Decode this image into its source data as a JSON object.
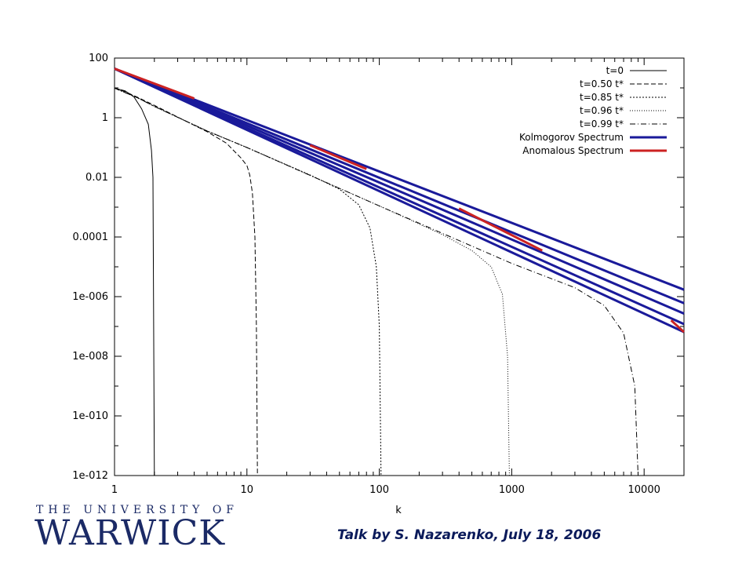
{
  "chart_data": {
    "type": "line",
    "xlabel": "k",
    "ylabel": "",
    "xscale": "log",
    "yscale": "log",
    "xlim": [
      1,
      20000
    ],
    "ylim": [
      1e-12,
      100
    ],
    "xticks": [
      {
        "value": 1,
        "label": "1"
      },
      {
        "value": 10,
        "label": "10"
      },
      {
        "value": 100,
        "label": "100"
      },
      {
        "value": 1000,
        "label": "1000"
      },
      {
        "value": 10000,
        "label": "10000"
      }
    ],
    "yticks": [
      {
        "value": 100,
        "label": "100"
      },
      {
        "value": 1,
        "label": "1"
      },
      {
        "value": 0.01,
        "label": "0.01"
      },
      {
        "value": 0.0001,
        "label": "0.0001"
      },
      {
        "value": 1e-06,
        "label": "1e-006"
      },
      {
        "value": 1e-08,
        "label": "1e-008"
      },
      {
        "value": 1e-10,
        "label": "1e-010"
      },
      {
        "value": 1e-12,
        "label": "1e-012"
      }
    ],
    "legend_position": "top-right",
    "series": [
      {
        "name": "t=0",
        "color": "#000000",
        "dash": "solid",
        "points": [
          [
            1,
            9.8
          ],
          [
            1.2,
            8
          ],
          [
            1.4,
            5
          ],
          [
            1.6,
            2
          ],
          [
            1.8,
            0.6
          ],
          [
            1.9,
            0.08
          ],
          [
            1.95,
            0.01
          ],
          [
            2.0,
            1e-12
          ]
        ]
      },
      {
        "name": "t=0.50 t*",
        "color": "#000000",
        "dash": "6,3",
        "points": [
          [
            1,
            9.8
          ],
          [
            1.2,
            7.5
          ],
          [
            1.5,
            4.8
          ],
          [
            2,
            2.6
          ],
          [
            3,
            1.05
          ],
          [
            5,
            0.34
          ],
          [
            7,
            0.14
          ],
          [
            9,
            0.045
          ],
          [
            10,
            0.025
          ],
          [
            10.5,
            0.012
          ],
          [
            11,
            0.003
          ],
          [
            11.5,
            0.0001
          ],
          [
            11.8,
            1e-07
          ],
          [
            12,
            1e-12
          ]
        ]
      },
      {
        "name": "t=0.85 t*",
        "color": "#000000",
        "dash": "2,2",
        "points": [
          [
            1,
            9.8
          ],
          [
            1.5,
            4.6
          ],
          [
            2,
            2.4
          ],
          [
            5,
            0.36
          ],
          [
            10,
            0.1
          ],
          [
            30,
            0.012
          ],
          [
            50,
            0.004
          ],
          [
            70,
            0.0012
          ],
          [
            85,
            0.0002
          ],
          [
            95,
            1e-05
          ],
          [
            100,
            1e-07
          ],
          [
            103,
            1e-12
          ]
        ]
      },
      {
        "name": "t=0.96 t*",
        "color": "#000000",
        "dash": "1,2",
        "points": [
          [
            1,
            9.8
          ],
          [
            1.5,
            4.6
          ],
          [
            2,
            2.4
          ],
          [
            5,
            0.36
          ],
          [
            10,
            0.1
          ],
          [
            100,
            0.0011
          ],
          [
            300,
            0.00012
          ],
          [
            500,
            3.5e-05
          ],
          [
            700,
            1e-05
          ],
          [
            850,
            1.2e-06
          ],
          [
            930,
            1e-08
          ],
          [
            960,
            1e-12
          ]
        ]
      },
      {
        "name": "t=0.99 t*",
        "color": "#000000",
        "dash": "7,3,1,3",
        "points": [
          [
            1,
            9.8
          ],
          [
            1.5,
            4.6
          ],
          [
            2,
            2.4
          ],
          [
            5,
            0.36
          ],
          [
            10,
            0.1
          ],
          [
            100,
            0.0011
          ],
          [
            1000,
            1.3e-05
          ],
          [
            3000,
            2e-06
          ],
          [
            5000,
            5e-07
          ],
          [
            7000,
            6e-08
          ],
          [
            8500,
            1e-09
          ],
          [
            9000,
            1e-12
          ]
        ]
      },
      {
        "name": "Kolmogorov Spectrum",
        "color": "#1a1a9a",
        "dash": "solid",
        "width": 3,
        "lines": [
          [
            [
              1,
              44
            ],
            [
              20000,
              1.7e-06
            ]
          ],
          [
            [
              1,
              44
            ],
            [
              20000,
              6e-07
            ]
          ],
          [
            [
              1,
              44
            ],
            [
              20000,
              2.7e-07
            ]
          ],
          [
            [
              1,
              44
            ],
            [
              20000,
              1.2e-07
            ]
          ]
        ]
      },
      {
        "name": "Anomalous Spectrum",
        "color": "#cc2222",
        "dash": "solid",
        "width": 3,
        "segments": [
          [
            [
              1,
              44
            ],
            [
              4,
              4.4
            ]
          ],
          [
            [
              30,
              0.12
            ],
            [
              80,
              0.019
            ]
          ],
          [
            [
              400,
              0.0009
            ],
            [
              1700,
              3.5e-05
            ]
          ],
          [
            [
              16000,
              1.6e-07
            ],
            [
              20000,
              6.5e-08
            ]
          ]
        ],
        "underlying": [
          [
            1,
            44
          ],
          [
            20000,
            6.5e-08
          ]
        ]
      }
    ]
  },
  "footer": {
    "talk": "Talk by S. Nazarenko, July 18, 2006",
    "logo_small": "THE UNIVERSITY OF",
    "logo_big": "WARWICK"
  }
}
